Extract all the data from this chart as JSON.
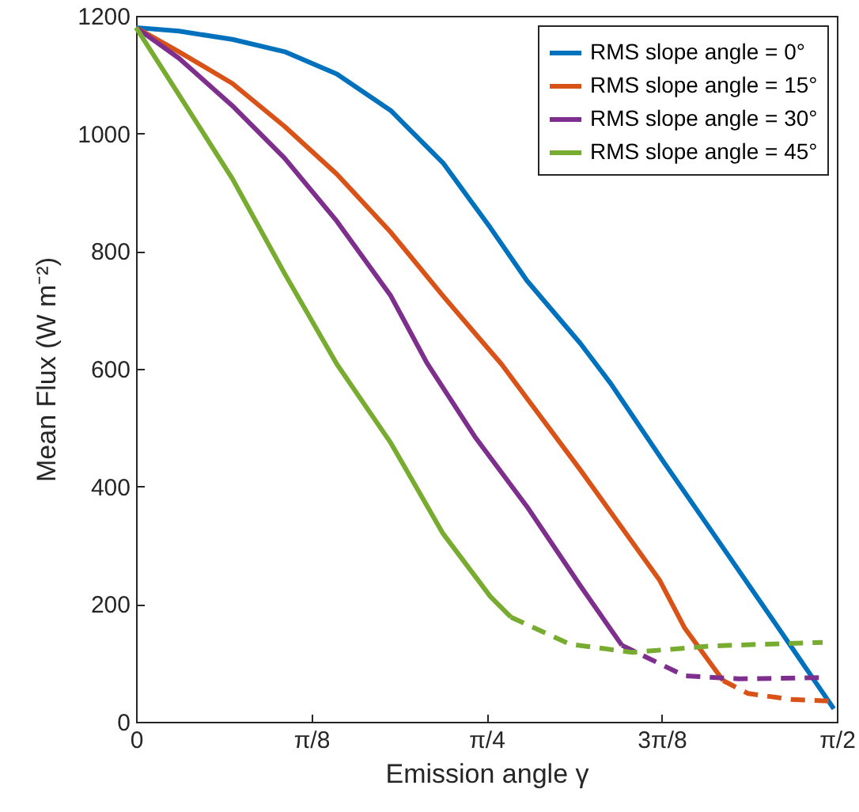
{
  "chart_data": {
    "type": "line",
    "xlabel": "Emission angle γ",
    "ylabel": "Mean Flux (W m⁻²)",
    "xlim": [
      0,
      1.5708
    ],
    "xticks": [
      0,
      {
        "value": 0.3927,
        "label": "π/8"
      },
      {
        "value": 0.7854,
        "label": "π/4"
      },
      {
        "value": 1.1781,
        "label": "3π/8"
      },
      {
        "value": 1.5708,
        "label": "π/2"
      }
    ],
    "ylim": [
      0,
      1200
    ],
    "yticks": [
      0,
      200,
      400,
      600,
      800,
      1000,
      1200
    ],
    "grid": false,
    "legend": "top right",
    "series": [
      {
        "name": "RMS slope angle = 0°",
        "color": "#0072bd",
        "line_style": "solid",
        "x": [
          0,
          0.096,
          0.216,
          0.333,
          0.45,
          0.571,
          0.688,
          0.794,
          0.876,
          0.996,
          1.064,
          1.184,
          1.291,
          1.433,
          1.564
        ],
        "values": [
          1180,
          1174,
          1160,
          1139,
          1101,
          1039,
          950,
          840,
          750,
          643,
          575,
          440,
          323,
          167,
          22
        ]
      },
      {
        "name": "RMS slope angle = 15°",
        "color": "#d95319",
        "line_style": "solid",
        "x": [
          0,
          0.096,
          0.216,
          0.333,
          0.45,
          0.571,
          0.688,
          0.777,
          0.819,
          0.996,
          1.174,
          1.23,
          1.316
        ],
        "values": [
          1180,
          1139,
          1085,
          1012,
          931,
          832,
          724,
          645,
          608,
          428,
          240,
          159,
          70
        ]
      },
      {
        "color": "#d95319",
        "line_style": "dashed",
        "x": [
          1.316,
          1.372,
          1.468,
          1.564
        ],
        "values": [
          70,
          48,
          38,
          35
        ]
      },
      {
        "name": "RMS slope angle = 30°",
        "color": "#7e2f8e",
        "line_style": "solid",
        "x": [
          0,
          0.096,
          0.216,
          0.333,
          0.45,
          0.571,
          0.652,
          0.759,
          0.876,
          0.996,
          1.089
        ],
        "values": [
          1180,
          1128,
          1047,
          958,
          851,
          724,
          610,
          485,
          366,
          231,
          130
        ]
      },
      {
        "color": "#7e2f8e",
        "line_style": "dashed",
        "x": [
          1.089,
          1.23,
          1.351,
          1.539
        ],
        "values": [
          130,
          78,
          73,
          75
        ]
      },
      {
        "name": "RMS slope angle = 45°",
        "color": "#77ac30",
        "line_style": "solid",
        "x": [
          0,
          0.096,
          0.216,
          0.333,
          0.45,
          0.571,
          0.688,
          0.794,
          0.84
        ],
        "values": [
          1180,
          1066,
          923,
          762,
          608,
          474,
          320,
          213,
          178
        ]
      },
      {
        "color": "#77ac30",
        "line_style": "dashed",
        "x": [
          0.84,
          0.972,
          1.113,
          1.291,
          1.539
        ],
        "values": [
          178,
          132,
          118,
          129,
          135
        ]
      }
    ]
  }
}
